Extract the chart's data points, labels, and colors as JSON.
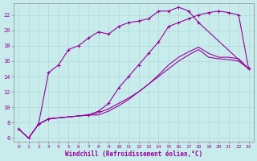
{
  "xlabel": "Windchill (Refroidissement éolien,°C)",
  "background_color": "#c8ecec",
  "line_color": "#990099",
  "grid_color": "#b0d8d8",
  "xlim": [
    -0.5,
    23.5
  ],
  "ylim": [
    5.5,
    23.5
  ],
  "xticks": [
    0,
    1,
    2,
    3,
    4,
    5,
    6,
    7,
    8,
    9,
    10,
    11,
    12,
    13,
    14,
    15,
    16,
    17,
    18,
    19,
    20,
    21,
    22,
    23
  ],
  "yticks": [
    6,
    8,
    10,
    12,
    14,
    16,
    18,
    20,
    22
  ],
  "curves": [
    {
      "points": [
        [
          0,
          7.2
        ],
        [
          1,
          6.0
        ],
        [
          2,
          7.8
        ],
        [
          3,
          8.5
        ],
        [
          7,
          9.0
        ],
        [
          8,
          9.3
        ],
        [
          9,
          9.8
        ],
        [
          10,
          10.5
        ],
        [
          11,
          11.2
        ],
        [
          12,
          12.0
        ],
        [
          13,
          13.0
        ],
        [
          14,
          14.0
        ],
        [
          15,
          15.0
        ],
        [
          16,
          16.0
        ],
        [
          17,
          16.8
        ],
        [
          18,
          17.5
        ],
        [
          19,
          16.5
        ],
        [
          20,
          16.3
        ],
        [
          21,
          16.2
        ],
        [
          22,
          16.0
        ],
        [
          23,
          15.0
        ]
      ],
      "has_markers": false
    },
    {
      "points": [
        [
          0,
          7.2
        ],
        [
          1,
          6.0
        ],
        [
          2,
          7.8
        ],
        [
          3,
          8.5
        ],
        [
          7,
          9.0
        ],
        [
          8,
          9.5
        ],
        [
          9,
          10.5
        ],
        [
          10,
          12.5
        ],
        [
          11,
          14.0
        ],
        [
          12,
          15.5
        ],
        [
          13,
          17.0
        ],
        [
          14,
          18.5
        ],
        [
          15,
          20.5
        ],
        [
          16,
          21.0
        ],
        [
          17,
          21.5
        ],
        [
          18,
          22.0
        ],
        [
          19,
          22.3
        ],
        [
          20,
          22.5
        ],
        [
          21,
          22.3
        ],
        [
          22,
          22.0
        ],
        [
          23,
          15.0
        ]
      ],
      "has_markers": true
    },
    {
      "points": [
        [
          0,
          7.2
        ],
        [
          1,
          6.0
        ],
        [
          2,
          7.8
        ],
        [
          3,
          8.5
        ],
        [
          7,
          9.0
        ],
        [
          8,
          9.0
        ],
        [
          9,
          9.5
        ],
        [
          10,
          10.2
        ],
        [
          11,
          11.0
        ],
        [
          12,
          12.0
        ],
        [
          13,
          13.0
        ],
        [
          14,
          14.2
        ],
        [
          15,
          15.5
        ],
        [
          16,
          16.5
        ],
        [
          17,
          17.2
        ],
        [
          18,
          17.8
        ],
        [
          19,
          17.0
        ],
        [
          20,
          16.5
        ],
        [
          21,
          16.5
        ],
        [
          22,
          16.3
        ],
        [
          23,
          15.0
        ]
      ],
      "has_markers": false
    },
    {
      "points": [
        [
          2,
          7.8
        ],
        [
          3,
          14.5
        ],
        [
          4,
          15.5
        ],
        [
          5,
          17.5
        ],
        [
          6,
          18.0
        ],
        [
          7,
          19.0
        ],
        [
          8,
          19.8
        ],
        [
          9,
          19.5
        ],
        [
          10,
          20.5
        ],
        [
          11,
          21.0
        ],
        [
          12,
          21.2
        ],
        [
          13,
          21.5
        ],
        [
          14,
          22.5
        ],
        [
          15,
          22.5
        ],
        [
          16,
          23.0
        ],
        [
          17,
          22.5
        ],
        [
          18,
          21.0
        ],
        [
          23,
          15.0
        ]
      ],
      "has_markers": true
    }
  ]
}
